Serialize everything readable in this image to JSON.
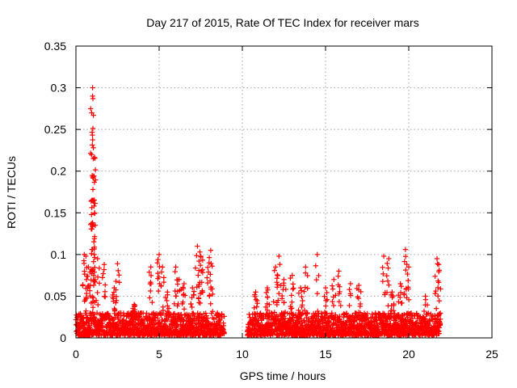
{
  "chart_data": {
    "type": "scatter",
    "title": "Day 217 of 2015, Rate Of TEC Index for receiver mars",
    "xlabel": "GPS time / hours",
    "ylabel": "ROTI / TECUs",
    "xlim": [
      0,
      25
    ],
    "ylim": [
      0,
      0.35
    ],
    "xticks": [
      "0",
      "5",
      "10",
      "15",
      "20",
      "25"
    ],
    "yticks": [
      "0",
      "0.05",
      "0.1",
      "0.15",
      "0.2",
      "0.25",
      "0.3",
      "0.35"
    ],
    "grid": true,
    "marker": "+",
    "color": "#ff0000",
    "data_gap_hours": [
      8.9,
      10.3
    ],
    "coverage_hours": [
      [
        0,
        8.9
      ],
      [
        10.3,
        21.9
      ]
    ],
    "baseline_range": [
      0.003,
      0.03
    ],
    "spikes": [
      {
        "x": 0.5,
        "y": 0.1
      },
      {
        "x": 0.6,
        "y": 0.098
      },
      {
        "x": 0.75,
        "y": 0.085
      },
      {
        "x": 1.0,
        "y": 0.3
      },
      {
        "x": 1.0,
        "y": 0.29
      },
      {
        "x": 1.02,
        "y": 0.287
      },
      {
        "x": 1.05,
        "y": 0.267
      },
      {
        "x": 1.05,
        "y": 0.228
      },
      {
        "x": 1.05,
        "y": 0.215
      },
      {
        "x": 1.02,
        "y": 0.178
      },
      {
        "x": 1.05,
        "y": 0.165
      },
      {
        "x": 1.0,
        "y": 0.106
      },
      {
        "x": 1.3,
        "y": 0.095
      },
      {
        "x": 1.7,
        "y": 0.088
      },
      {
        "x": 2.5,
        "y": 0.089
      },
      {
        "x": 2.3,
        "y": 0.06
      },
      {
        "x": 3.5,
        "y": 0.04
      },
      {
        "x": 4.5,
        "y": 0.085
      },
      {
        "x": 5.0,
        "y": 0.1
      },
      {
        "x": 5.2,
        "y": 0.085
      },
      {
        "x": 5.5,
        "y": 0.055
      },
      {
        "x": 6.0,
        "y": 0.085
      },
      {
        "x": 6.2,
        "y": 0.07
      },
      {
        "x": 6.5,
        "y": 0.065
      },
      {
        "x": 7.0,
        "y": 0.06
      },
      {
        "x": 7.3,
        "y": 0.11
      },
      {
        "x": 7.45,
        "y": 0.103
      },
      {
        "x": 7.5,
        "y": 0.098
      },
      {
        "x": 8.1,
        "y": 0.105
      },
      {
        "x": 8.0,
        "y": 0.09
      },
      {
        "x": 8.5,
        "y": 0.03
      },
      {
        "x": 10.8,
        "y": 0.055
      },
      {
        "x": 11.5,
        "y": 0.06
      },
      {
        "x": 12.0,
        "y": 0.085
      },
      {
        "x": 12.2,
        "y": 0.098
      },
      {
        "x": 12.5,
        "y": 0.07
      },
      {
        "x": 13.0,
        "y": 0.075
      },
      {
        "x": 13.5,
        "y": 0.06
      },
      {
        "x": 13.8,
        "y": 0.085
      },
      {
        "x": 14.5,
        "y": 0.1
      },
      {
        "x": 15.0,
        "y": 0.06
      },
      {
        "x": 15.5,
        "y": 0.07
      },
      {
        "x": 15.8,
        "y": 0.08
      },
      {
        "x": 16.5,
        "y": 0.065
      },
      {
        "x": 17.0,
        "y": 0.063
      },
      {
        "x": 18.5,
        "y": 0.098
      },
      {
        "x": 18.8,
        "y": 0.095
      },
      {
        "x": 19.0,
        "y": 0.055
      },
      {
        "x": 19.5,
        "y": 0.065
      },
      {
        "x": 19.8,
        "y": 0.106
      },
      {
        "x": 20.0,
        "y": 0.085
      },
      {
        "x": 21.0,
        "y": 0.05
      },
      {
        "x": 21.7,
        "y": 0.095
      },
      {
        "x": 21.8,
        "y": 0.088
      }
    ]
  }
}
